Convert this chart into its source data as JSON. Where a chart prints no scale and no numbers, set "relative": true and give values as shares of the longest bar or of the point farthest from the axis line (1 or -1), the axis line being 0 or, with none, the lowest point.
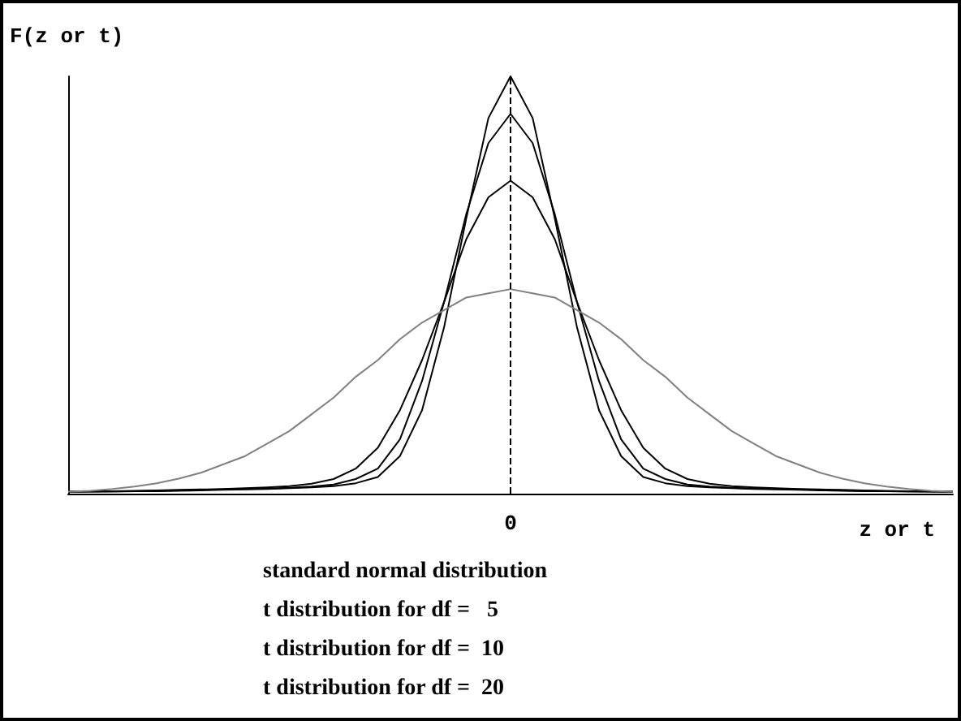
{
  "chart_data": {
    "type": "line",
    "relative": true,
    "ylabel": "F(z or t)",
    "xlabel": "z or t",
    "categories": [
      null,
      null,
      null,
      null,
      null,
      null,
      null,
      null,
      null,
      null,
      null,
      null,
      null,
      null,
      null,
      null,
      null,
      null,
      null,
      null,
      null,
      null,
      null,
      null,
      null,
      null,
      null,
      null,
      null,
      null,
      null,
      null,
      null,
      null,
      null,
      null,
      null,
      null,
      null,
      null,
      null
    ],
    "series": [
      {
        "color": "#000000",
        "values": [
          0.005,
          0.005,
          0.005,
          0.006,
          0.006,
          0.007,
          0.008,
          0.009,
          0.01,
          0.011,
          0.013,
          0.015,
          0.018,
          0.025,
          0.04,
          0.09,
          0.2,
          0.4,
          0.66,
          0.9,
          1,
          0.9,
          0.66,
          0.4,
          0.2,
          0.09,
          0.04,
          0.025,
          0.018,
          0.015,
          0.013,
          0.011,
          0.01,
          0.009,
          0.008,
          0.007,
          0.006,
          0.006,
          0.005,
          0.005,
          0.005
        ]
      },
      {
        "color": "#000000",
        "values": [
          0.005,
          0.005,
          0.006,
          0.006,
          0.007,
          0.008,
          0.009,
          0.01,
          0.011,
          0.012,
          0.014,
          0.017,
          0.022,
          0.035,
          0.06,
          0.13,
          0.27,
          0.46,
          0.67,
          0.84,
          0.91,
          0.84,
          0.67,
          0.46,
          0.27,
          0.13,
          0.06,
          0.035,
          0.022,
          0.017,
          0.014,
          0.012,
          0.011,
          0.01,
          0.009,
          0.008,
          0.007,
          0.006,
          0.006,
          0.005,
          0.005
        ]
      },
      {
        "color": "#000000",
        "values": [
          0.005,
          0.006,
          0.006,
          0.007,
          0.008,
          0.009,
          0.01,
          0.011,
          0.013,
          0.015,
          0.018,
          0.024,
          0.035,
          0.06,
          0.11,
          0.2,
          0.32,
          0.46,
          0.61,
          0.71,
          0.75,
          0.71,
          0.61,
          0.46,
          0.32,
          0.2,
          0.11,
          0.06,
          0.035,
          0.024,
          0.018,
          0.015,
          0.013,
          0.011,
          0.01,
          0.009,
          0.008,
          0.007,
          0.006,
          0.006,
          0.005
        ]
      },
      {
        "color": "#808080",
        "values": [
          0.005,
          0.007,
          0.011,
          0.017,
          0.025,
          0.036,
          0.05,
          0.07,
          0.09,
          0.12,
          0.15,
          0.19,
          0.23,
          0.28,
          0.32,
          0.37,
          0.41,
          0.44,
          0.47,
          0.48,
          0.49,
          0.48,
          0.47,
          0.44,
          0.41,
          0.37,
          0.32,
          0.28,
          0.23,
          0.19,
          0.15,
          0.12,
          0.09,
          0.07,
          0.05,
          0.036,
          0.025,
          0.017,
          0.011,
          0.007,
          0.005
        ]
      }
    ],
    "ref_lines": [
      {
        "axis": "x",
        "label": "0",
        "color": "#000000",
        "line_style": "dashed"
      }
    ],
    "annotations": [
      "standard normal distribution",
      "t distribution for df =   5",
      "t distribution for df =  10",
      "t distribution for df =  20"
    ]
  }
}
